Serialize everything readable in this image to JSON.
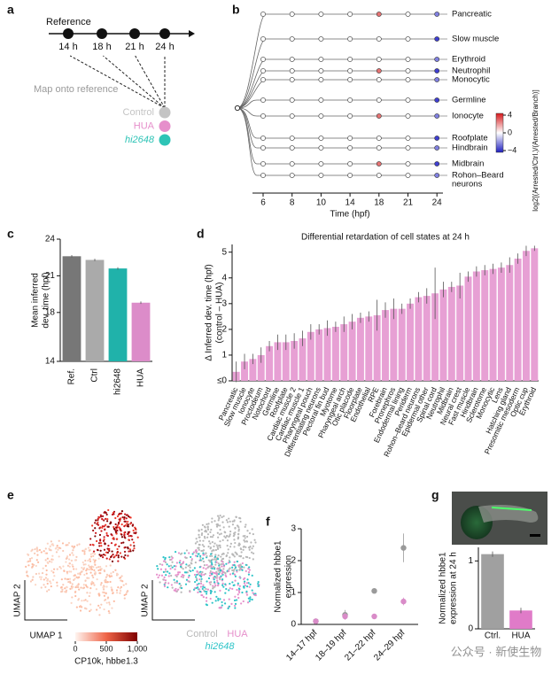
{
  "panels": [
    "a",
    "b",
    "c",
    "d",
    "e",
    "f",
    "g"
  ],
  "panel_a": {
    "title": "Reference",
    "times": [
      "14 h",
      "18 h",
      "21 h",
      "24 h"
    ],
    "caption": "Map onto reference",
    "legend": [
      {
        "name": "Control",
        "color": "#c4c4c4"
      },
      {
        "name": "HUA",
        "color": "#e68fcb"
      },
      {
        "name": "hi2648",
        "color": "#2ec4b6"
      }
    ]
  },
  "panel_b": {
    "leaves": [
      "Pancreatic",
      "Slow muscle",
      "Erythroid",
      "Neutrophil",
      "Monocytic",
      "Germline",
      "Ionocyte",
      "Roofplate",
      "Hindbrain",
      "Midbrain",
      "Rohon–Beard",
      "neurons"
    ],
    "xticks": [
      "6",
      "8",
      "10",
      "14",
      "18",
      "21",
      "24"
    ],
    "xlabel": "Time (hpf)",
    "colorbar": {
      "ticks": [
        4,
        0,
        {
          "value": -4,
          "label": "−4"
        }
      ],
      "label": "log2[(Arrested/Ctrl.)/(Arrested/Branch)]"
    }
  },
  "panel_e": {
    "ylabel": "UMAP 2",
    "xlabel": "UMAP 1",
    "colorbar": {
      "lim": [
        0,
        1000
      ],
      "ticks": [
        0,
        500,
        {
          "value": 1000,
          "label": "1,000"
        }
      ],
      "label": "CP10k, hbbe1.3"
    },
    "legend": [
      {
        "name": "Control",
        "color": "#b8b8b8"
      },
      {
        "name": "HUA",
        "color": "#e68fcb"
      },
      {
        "name": "hi2648",
        "color": "#2ec4c8"
      }
    ]
  },
  "chart_data": [
    {
      "type": "bar",
      "ylabel": [
        "Mean inferred",
        "dev. time (hpf)"
      ],
      "categories": [
        "Ref.",
        "Ctrl",
        "hi2648",
        "HUA"
      ],
      "values": [
        22.6,
        22.3,
        21.6,
        18.8
      ],
      "errors": [
        0.1,
        0.1,
        0.1,
        0.1
      ],
      "colors": [
        "#777777",
        "#aaaaaa",
        "#20b2aa",
        "#dc8cc9"
      ],
      "ylim": [
        14,
        24
      ],
      "yticks": [
        14,
        18,
        21,
        24
      ]
    },
    {
      "type": "bar",
      "title": "Differential retardation of cell states at 24 h",
      "ylabel": [
        "Δ Inferred dev. time (hpf)",
        "(control – HUA)"
      ],
      "categories": [
        "Pancreatic",
        "Slow muscle",
        "Ionocyte",
        "Proctodeum",
        "Notochord",
        "Germline",
        "Roofplate",
        "Cardiac muscle 2",
        "Cardiac muscle 1",
        "Pharyngeal pouch",
        "Differentiating neurons",
        "Pectoral fin bud",
        "Myotome",
        "Pharyngeal arch",
        "Otic placode",
        "Floorplate",
        "Endothelial",
        "RPE",
        "Forebrain",
        "Pronephros",
        "Endodermal lining",
        "Periderm",
        "Rohon–Beard neurons",
        "Epidermal other",
        "Spinal cord",
        "Neutrophil",
        "Midbrain",
        "Neural crest",
        "Fast muscle",
        "Hindbrain",
        "Sclerotome",
        "Monocytic",
        "Lens",
        "Hatching gland",
        "Presomitic mesoderm",
        "Optic cup",
        "Erythroid"
      ],
      "values": [
        0.35,
        0.75,
        0.85,
        1.0,
        1.35,
        1.5,
        1.5,
        1.55,
        1.65,
        1.9,
        2.0,
        2.05,
        2.1,
        2.2,
        2.3,
        2.45,
        2.5,
        2.55,
        2.75,
        2.8,
        2.8,
        3.0,
        3.25,
        3.3,
        3.4,
        3.55,
        3.65,
        3.7,
        4.05,
        4.25,
        4.3,
        4.35,
        4.4,
        4.5,
        4.75,
        5.05,
        5.15
      ],
      "errors": [
        0.4,
        0.3,
        0.2,
        0.3,
        0.2,
        0.3,
        0.3,
        0.3,
        0.3,
        0.3,
        0.2,
        0.3,
        0.2,
        0.3,
        0.3,
        0.2,
        0.2,
        0.6,
        0.3,
        0.4,
        0.2,
        0.2,
        0.2,
        0.3,
        1.0,
        0.3,
        0.2,
        0.5,
        0.2,
        0.2,
        0.2,
        0.2,
        0.2,
        0.3,
        0.2,
        0.2,
        0.1
      ],
      "color": "#e7a0d4",
      "ylim": [
        0,
        5.3
      ],
      "yticks": [
        {
          "value": 0,
          "label": "≤0"
        },
        1,
        2,
        3,
        4,
        5
      ]
    },
    {
      "type": "scatter",
      "ylabel": [
        "Normalized hbbe1",
        "expression"
      ],
      "categories": [
        "14–17 hpf",
        "18–19 hpf",
        "21–22 hpf",
        "24–29 hpf"
      ],
      "series": [
        {
          "name": "Control",
          "color": "#9a9a9a",
          "values": [
            0.1,
            0.3,
            1.05,
            2.4
          ],
          "errors": [
            0.02,
            0.15,
            0.05,
            0.45
          ]
        },
        {
          "name": "HUA",
          "color": "#d98cc8",
          "values": [
            0.1,
            0.25,
            0.25,
            0.72
          ],
          "errors": [
            0.02,
            0.1,
            0.03,
            0.12
          ]
        }
      ],
      "ylim": [
        0,
        3
      ],
      "yticks": [
        0,
        1,
        2,
        3
      ]
    },
    {
      "type": "bar",
      "ylabel": [
        "Normalized hbbe1",
        "expression at 24 h"
      ],
      "categories": [
        "Ctrl.",
        "HUA"
      ],
      "values": [
        1.1,
        0.27
      ],
      "errors": [
        0.04,
        0.04
      ],
      "colors": [
        "#a0a0a0",
        "#e07bc8"
      ],
      "ylim": [
        0,
        1.2
      ],
      "yticks": [
        0,
        1
      ]
    }
  ],
  "watermark": "公众号 · 新使生物"
}
